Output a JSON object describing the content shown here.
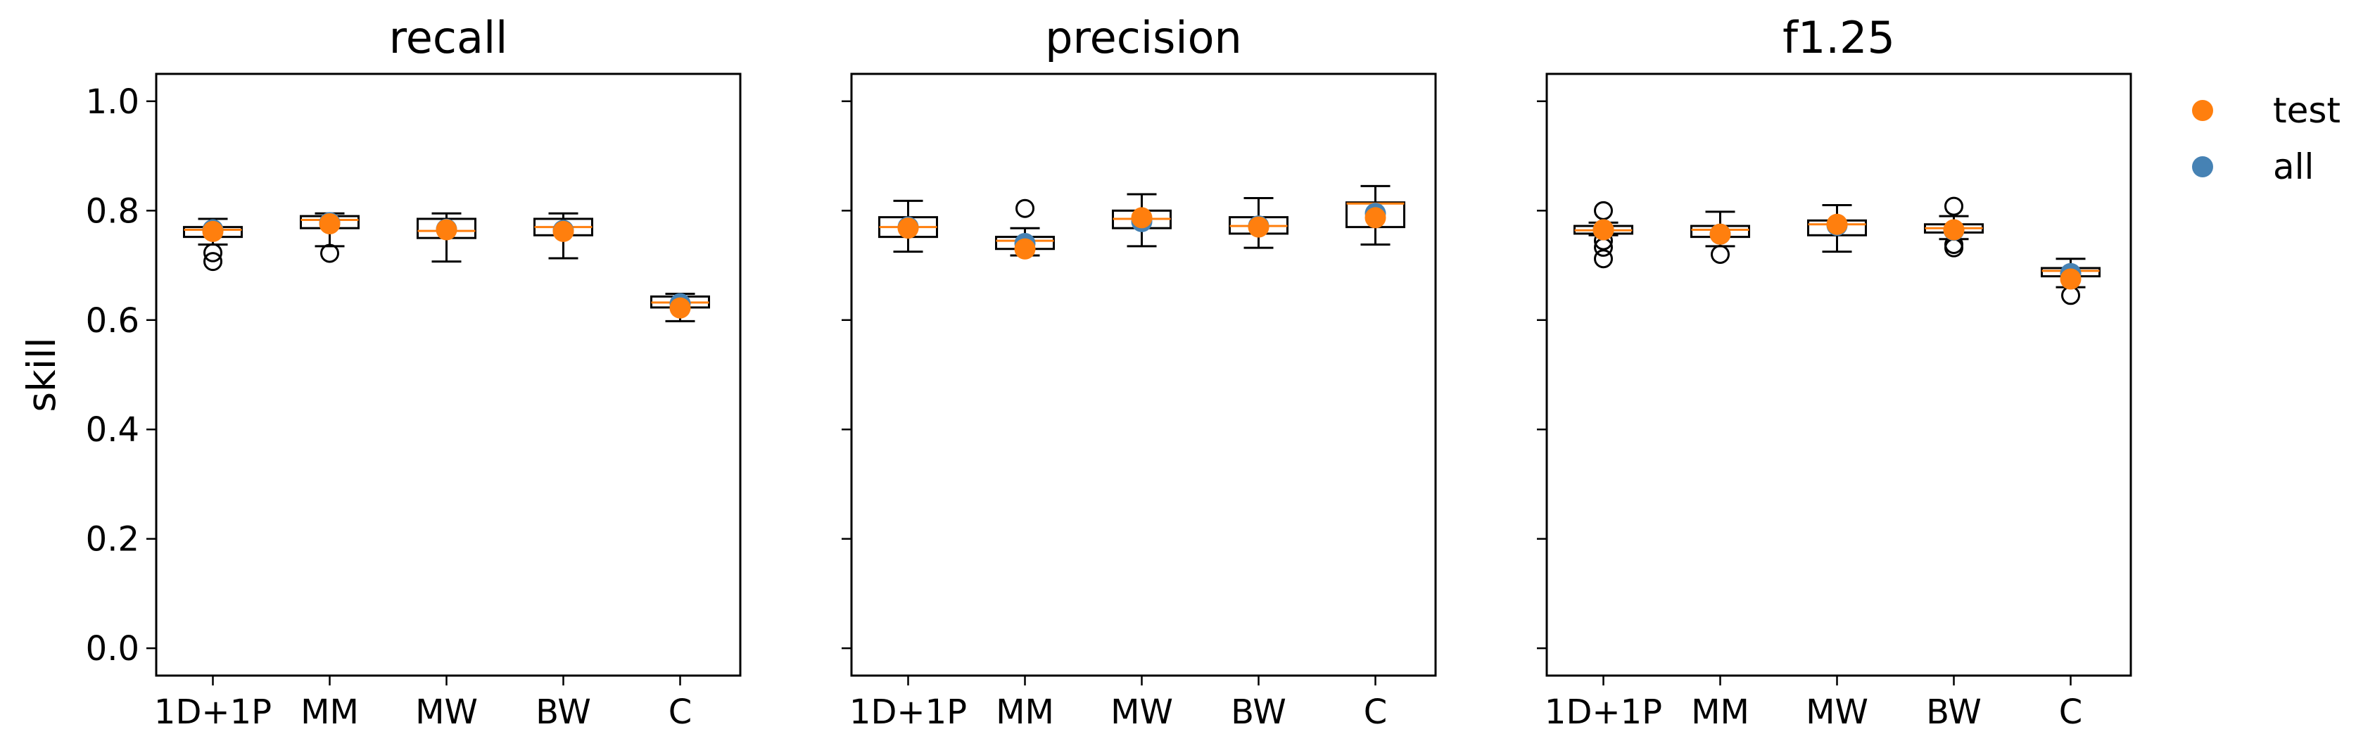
{
  "chart_data": [
    {
      "type": "box",
      "title": "recall",
      "ylabel": "skill",
      "ylim": [
        -0.05,
        1.05
      ],
      "yticks": [
        0.0,
        0.2,
        0.4,
        0.6,
        0.8,
        1.0
      ],
      "yticklabels": [
        "0.0",
        "0.2",
        "0.4",
        "0.6",
        "0.8",
        "1.0"
      ],
      "categories": [
        "1D+1P",
        "MM",
        "MW",
        "BW",
        "C"
      ],
      "boxes": [
        {
          "whisker_low": 0.738,
          "q1": 0.752,
          "median": 0.765,
          "q3": 0.77,
          "whisker_high": 0.785,
          "outliers": [
            0.707,
            0.723
          ]
        },
        {
          "whisker_low": 0.735,
          "q1": 0.768,
          "median": 0.783,
          "q3": 0.79,
          "whisker_high": 0.795,
          "outliers": [
            0.722
          ]
        },
        {
          "whisker_low": 0.707,
          "q1": 0.75,
          "median": 0.763,
          "q3": 0.785,
          "whisker_high": 0.795,
          "outliers": []
        },
        {
          "whisker_low": 0.713,
          "q1": 0.755,
          "median": 0.77,
          "q3": 0.785,
          "whisker_high": 0.795,
          "outliers": []
        },
        {
          "whisker_low": 0.598,
          "q1": 0.623,
          "median": 0.632,
          "q3": 0.643,
          "whisker_high": 0.648,
          "outliers": []
        }
      ],
      "series": [
        {
          "name": "test",
          "color": "#ff7f0e",
          "values": [
            0.762,
            0.776,
            0.765,
            0.762,
            0.622
          ]
        },
        {
          "name": "all",
          "color": "#4682b4",
          "values": [
            0.765,
            0.778,
            0.766,
            0.764,
            0.63
          ]
        }
      ]
    },
    {
      "type": "box",
      "title": "precision",
      "ylabel": "",
      "ylim": [
        -0.05,
        1.05
      ],
      "yticks": [
        0.0,
        0.2,
        0.4,
        0.6,
        0.8,
        1.0
      ],
      "yticklabels": [],
      "categories": [
        "1D+1P",
        "MM",
        "MW",
        "BW",
        "C"
      ],
      "boxes": [
        {
          "whisker_low": 0.725,
          "q1": 0.752,
          "median": 0.77,
          "q3": 0.788,
          "whisker_high": 0.818,
          "outliers": []
        },
        {
          "whisker_low": 0.718,
          "q1": 0.73,
          "median": 0.745,
          "q3": 0.752,
          "whisker_high": 0.768,
          "outliers": [
            0.804
          ]
        },
        {
          "whisker_low": 0.735,
          "q1": 0.768,
          "median": 0.785,
          "q3": 0.8,
          "whisker_high": 0.83,
          "outliers": []
        },
        {
          "whisker_low": 0.732,
          "q1": 0.758,
          "median": 0.772,
          "q3": 0.788,
          "whisker_high": 0.823,
          "outliers": []
        },
        {
          "whisker_low": 0.738,
          "q1": 0.77,
          "median": 0.813,
          "q3": 0.815,
          "whisker_high": 0.845,
          "outliers": []
        }
      ],
      "series": [
        {
          "name": "test",
          "color": "#ff7f0e",
          "values": [
            0.768,
            0.73,
            0.787,
            0.77,
            0.787
          ]
        },
        {
          "name": "all",
          "color": "#4682b4",
          "values": [
            0.77,
            0.74,
            0.78,
            0.772,
            0.795
          ]
        }
      ]
    },
    {
      "type": "box",
      "title": "f1.25",
      "ylabel": "",
      "ylim": [
        -0.05,
        1.05
      ],
      "yticks": [
        0.0,
        0.2,
        0.4,
        0.6,
        0.8,
        1.0
      ],
      "yticklabels": [],
      "categories": [
        "1D+1P",
        "MM",
        "MW",
        "BW",
        "C"
      ],
      "boxes": [
        {
          "whisker_low": 0.755,
          "q1": 0.758,
          "median": 0.764,
          "q3": 0.772,
          "whisker_high": 0.778,
          "outliers": [
            0.712,
            0.733,
            0.745,
            0.8
          ]
        },
        {
          "whisker_low": 0.735,
          "q1": 0.752,
          "median": 0.765,
          "q3": 0.772,
          "whisker_high": 0.798,
          "outliers": [
            0.72
          ]
        },
        {
          "whisker_low": 0.725,
          "q1": 0.755,
          "median": 0.775,
          "q3": 0.782,
          "whisker_high": 0.81,
          "outliers": []
        },
        {
          "whisker_low": 0.748,
          "q1": 0.76,
          "median": 0.768,
          "q3": 0.775,
          "whisker_high": 0.79,
          "outliers": [
            0.732,
            0.738,
            0.808
          ]
        },
        {
          "whisker_low": 0.66,
          "q1": 0.68,
          "median": 0.69,
          "q3": 0.695,
          "whisker_high": 0.712,
          "outliers": [
            0.645
          ]
        }
      ],
      "series": [
        {
          "name": "test",
          "color": "#ff7f0e",
          "values": [
            0.765,
            0.757,
            0.775,
            0.765,
            0.675
          ]
        },
        {
          "name": "all",
          "color": "#4682b4",
          "values": [
            0.765,
            0.757,
            0.773,
            0.764,
            0.685
          ]
        }
      ]
    }
  ],
  "legend": {
    "placement": "outside-right",
    "entries": [
      {
        "label": "test",
        "color": "#ff7f0e"
      },
      {
        "label": "all",
        "color": "#4682b4"
      }
    ]
  },
  "style": {
    "median_color": "#ff7f0e",
    "box_color": "#000000"
  }
}
